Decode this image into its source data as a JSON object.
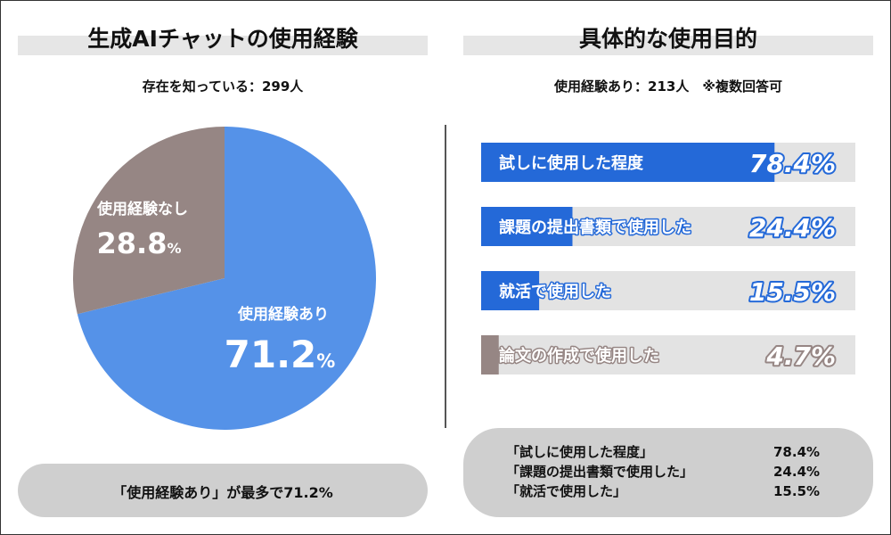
{
  "left_panel": {
    "title": "生成AIチャットの使用経験",
    "subtitle": "存在を知っている：299人",
    "summary": "「使用経験あり」が最多で71.2%"
  },
  "right_panel": {
    "title": "具体的な使用目的",
    "subtitle": "使用経験あり：213人　※複数回答可",
    "summary_rows": [
      {
        "label": "「試しに使用した程度」",
        "value": "78.4%"
      },
      {
        "label": "「課題の提出書類で使用した」",
        "value": "24.4%"
      },
      {
        "label": "「就活で使用した」",
        "value": "15.5%"
      }
    ]
  },
  "colors": {
    "pie_yes": "#5592e8",
    "pie_no": "#968684",
    "bar_blue": "#2469d8",
    "bar_gray": "#968684",
    "bar_track": "#e3e3e3"
  },
  "chart_data": [
    {
      "type": "pie",
      "slices": [
        {
          "label": "使用経験あり",
          "value": 71.2,
          "display": "71.2",
          "unit": "%"
        },
        {
          "label": "使用経験なし",
          "value": 28.8,
          "display": "28.8",
          "unit": "%"
        }
      ]
    },
    {
      "type": "bar",
      "orientation": "horizontal",
      "xlim": [
        0,
        100
      ],
      "categories": [
        "試しに使用した程度",
        "課題の提出書類で使用した",
        "就活で使用した",
        "論文の作成で使用した"
      ],
      "values": [
        78.4,
        24.4,
        15.5,
        4.7
      ],
      "value_labels": [
        "78.4%",
        "24.4%",
        "15.5%",
        "4.7%"
      ]
    }
  ]
}
